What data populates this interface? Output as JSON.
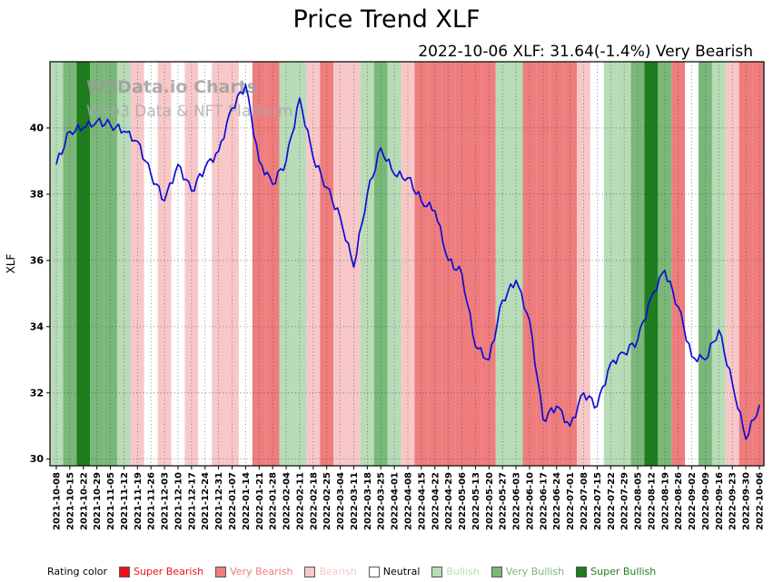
{
  "header": {
    "title": "Price Trend XLF",
    "subtitle": "2022-10-06 XLF: 31.64(-1.4%) Very Bearish"
  },
  "watermark": {
    "line1": "W3Data.io Charts",
    "line2": "Web3 Data & NFT Platform"
  },
  "legend": {
    "label": "Rating color",
    "items": [
      {
        "key": "super_bearish",
        "label": "Super Bearish",
        "color": "#ee1111"
      },
      {
        "key": "very_bearish",
        "label": "Very Bearish",
        "color": "#ef7d7d"
      },
      {
        "key": "bearish",
        "label": "Bearish",
        "color": "#f8c8c8"
      },
      {
        "key": "neutral",
        "label": "Neutral",
        "color": "#ffffff",
        "text_color": "#000000"
      },
      {
        "key": "bullish",
        "label": "Bullish",
        "color": "#b7dcb7"
      },
      {
        "key": "very_bullish",
        "label": "Very Bullish",
        "color": "#7ab87a"
      },
      {
        "key": "super_bullish",
        "label": "Super Bullish",
        "color": "#1e7d1e"
      }
    ]
  },
  "chart_data": {
    "type": "line",
    "title": "Price Trend XLF",
    "xlabel": "",
    "ylabel": "XLF",
    "ylim": [
      29.8,
      42.0
    ],
    "yticks": [
      30,
      32,
      34,
      36,
      38,
      40
    ],
    "grid": true,
    "legend_position": "bottom",
    "line_color": "#0d0dd6",
    "categories": [
      "2021-10-08",
      "2021-10-15",
      "2021-10-22",
      "2021-10-29",
      "2021-11-05",
      "2021-11-12",
      "2021-11-19",
      "2021-11-26",
      "2021-12-03",
      "2021-12-10",
      "2021-12-17",
      "2021-12-24",
      "2021-12-31",
      "2022-01-07",
      "2022-01-14",
      "2022-01-21",
      "2022-01-28",
      "2022-02-04",
      "2022-02-11",
      "2022-02-18",
      "2022-02-25",
      "2022-03-04",
      "2022-03-11",
      "2022-03-18",
      "2022-03-25",
      "2022-04-01",
      "2022-04-08",
      "2022-04-15",
      "2022-04-22",
      "2022-04-29",
      "2022-05-06",
      "2022-05-13",
      "2022-05-20",
      "2022-05-27",
      "2022-06-03",
      "2022-06-10",
      "2022-06-17",
      "2022-06-24",
      "2022-07-01",
      "2022-07-08",
      "2022-07-15",
      "2022-07-22",
      "2022-07-29",
      "2022-08-05",
      "2022-08-12",
      "2022-08-19",
      "2022-08-26",
      "2022-09-02",
      "2022-09-09",
      "2022-09-16",
      "2022-09-23",
      "2022-09-30",
      "2022-10-06"
    ],
    "values": [
      38.9,
      39.9,
      40.0,
      40.2,
      40.1,
      39.9,
      39.6,
      38.6,
      37.8,
      38.9,
      38.1,
      38.8,
      39.3,
      40.6,
      41.3,
      39.0,
      38.3,
      39.0,
      40.9,
      39.1,
      38.2,
      37.3,
      35.8,
      38.0,
      39.4,
      38.6,
      38.5,
      37.8,
      37.5,
      36.0,
      35.6,
      33.4,
      33.0,
      34.8,
      35.4,
      34.2,
      31.2,
      31.6,
      31.0,
      32.0,
      31.6,
      32.9,
      33.2,
      33.6,
      34.9,
      35.7,
      34.6,
      33.1,
      33.0,
      33.9,
      32.3,
      30.6,
      31.64
    ],
    "ratings": [
      "bullish",
      "very_bullish",
      "super_bullish",
      "very_bullish",
      "very_bullish",
      "bullish",
      "bearish",
      "neutral",
      "bearish",
      "neutral",
      "bearish",
      "neutral",
      "bearish",
      "bearish",
      "neutral",
      "very_bearish",
      "very_bearish",
      "bullish",
      "bullish",
      "bearish",
      "very_bearish",
      "bearish",
      "bearish",
      "bullish",
      "very_bullish",
      "bullish",
      "bearish",
      "very_bearish",
      "very_bearish",
      "very_bearish",
      "very_bearish",
      "very_bearish",
      "very_bearish",
      "bullish",
      "bullish",
      "very_bearish",
      "very_bearish",
      "very_bearish",
      "very_bearish",
      "bearish",
      "neutral",
      "bullish",
      "bullish",
      "very_bullish",
      "super_bullish",
      "very_bullish",
      "very_bearish",
      "neutral",
      "very_bullish",
      "bullish",
      "bearish",
      "very_bearish",
      "very_bearish"
    ],
    "rating_colors": {
      "super_bearish": "#ee1111",
      "very_bearish": "#ef7d7d",
      "bearish": "#f8c8c8",
      "neutral": "#ffffff",
      "bullish": "#b7dcb7",
      "very_bullish": "#7ab87a",
      "super_bullish": "#1e7d1e"
    }
  }
}
